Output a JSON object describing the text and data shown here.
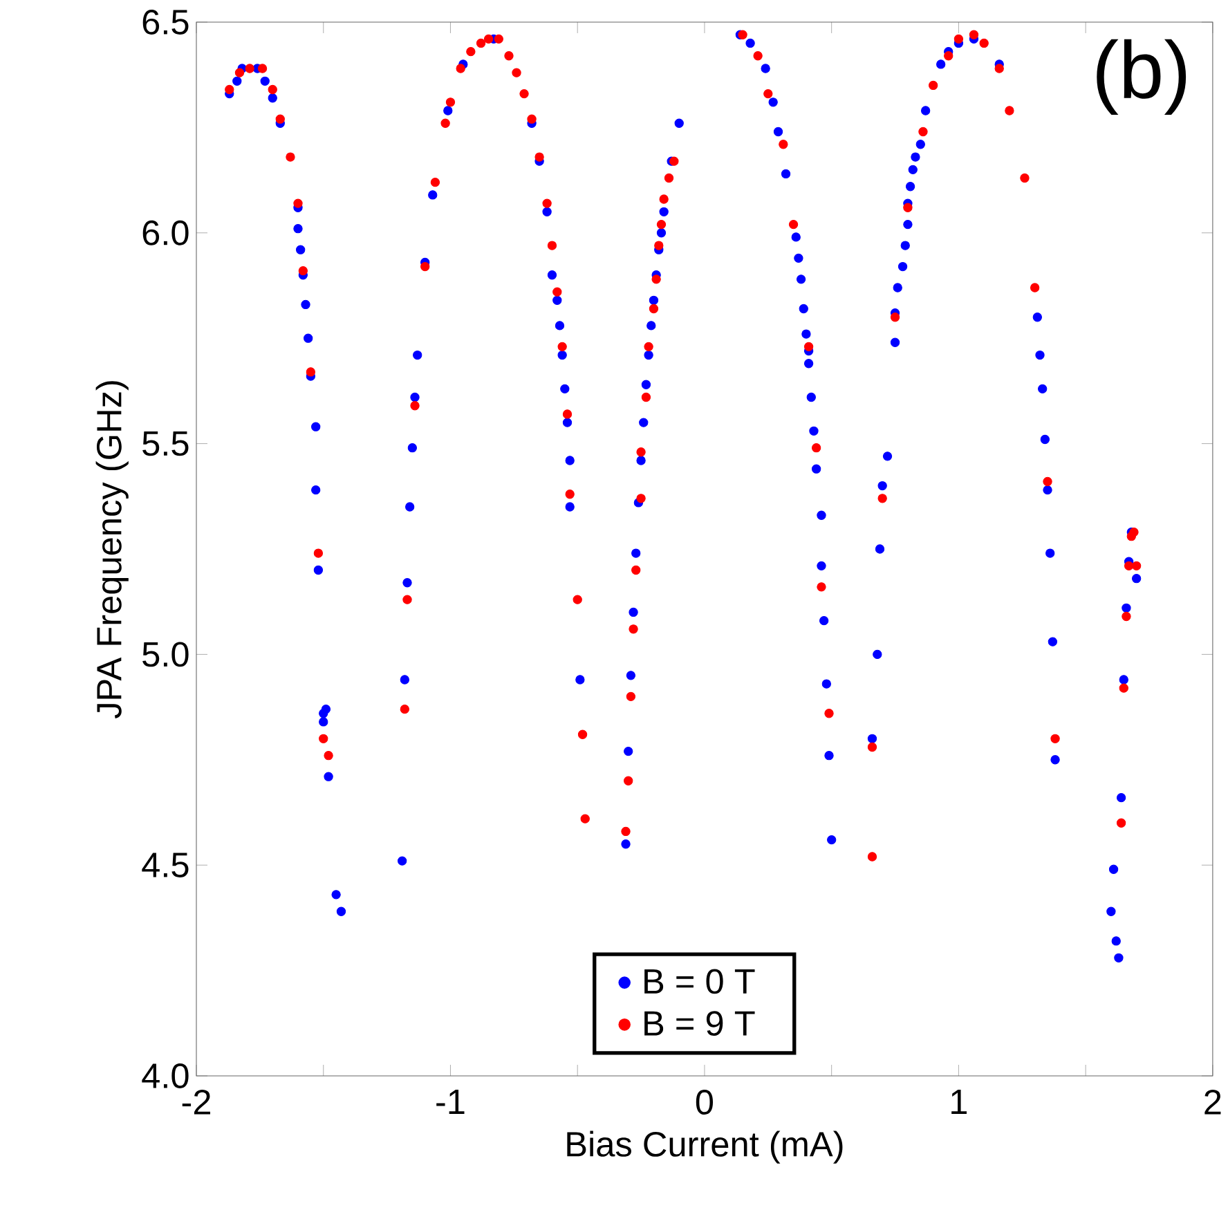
{
  "chart_data": {
    "type": "scatter",
    "xlabel": "Bias Current (mA)",
    "ylabel": "JPA Frequency (GHz)",
    "annotations": [
      "(b)"
    ],
    "xlim": [
      -2,
      2
    ],
    "xticks": [
      {
        "value": -2,
        "label": "-2"
      },
      {
        "value": -1.5,
        "label": null
      },
      {
        "value": -1,
        "label": "-1"
      },
      {
        "value": -0.5,
        "label": null
      },
      0,
      {
        "value": 0.5,
        "label": null
      },
      1,
      {
        "value": 1.5,
        "label": null
      },
      2
    ],
    "ylim": [
      4,
      6.5
    ],
    "yticks": [
      {
        "value": 4,
        "label": "4.0"
      },
      {
        "value": 4.5,
        "label": "4.5"
      },
      {
        "value": 5,
        "label": "5.0"
      },
      {
        "value": 5.5,
        "label": "5.5"
      },
      {
        "value": 6,
        "label": "6.0"
      },
      {
        "value": 6.5,
        "label": "6.5"
      }
    ],
    "marker": "circle",
    "legend": "bottom",
    "grid": false,
    "series": [
      {
        "name": "B = 0 T",
        "color": "#0000ff",
        "x": [
          -1.87,
          -1.84,
          -1.82,
          -1.76,
          -1.73,
          -1.7,
          -1.67,
          -1.6,
          -1.6,
          -1.59,
          -1.58,
          -1.57,
          -1.56,
          -1.55,
          -1.53,
          -1.53,
          -1.52,
          -1.5,
          -1.49,
          -1.5,
          -1.48,
          -1.45,
          -1.43,
          -0.95,
          -1.01,
          -1.07,
          -1.1,
          -1.13,
          -1.14,
          -1.15,
          -1.16,
          -1.17,
          -1.18,
          -1.19,
          -0.88,
          -0.83,
          -0.68,
          -0.65,
          -0.62,
          -0.6,
          -0.58,
          -0.57,
          -0.56,
          -0.55,
          -0.54,
          -0.53,
          -0.53,
          -0.49,
          -0.31,
          -0.3,
          -0.29,
          -0.28,
          -0.27,
          -0.26,
          -0.25,
          -0.24,
          -0.23,
          -0.22,
          -0.21,
          -0.2,
          -0.19,
          -0.18,
          -0.17,
          -0.16,
          -0.13,
          -0.1,
          0.14,
          0.18,
          0.24,
          0.27,
          0.29,
          0.32,
          0.36,
          0.37,
          0.38,
          0.39,
          0.4,
          0.41,
          0.41,
          0.42,
          0.43,
          0.44,
          0.46,
          0.46,
          0.47,
          0.48,
          0.49,
          0.5,
          0.66,
          0.68,
          0.69,
          0.7,
          0.72,
          0.75,
          0.75,
          0.76,
          0.78,
          0.79,
          0.8,
          0.8,
          0.81,
          0.82,
          0.83,
          0.85,
          0.87,
          0.9,
          0.93,
          0.96,
          1.0,
          1.06,
          1.16,
          1.31,
          1.32,
          1.33,
          1.34,
          1.35,
          1.36,
          1.37,
          1.38,
          1.68,
          1.67,
          1.7,
          1.66,
          1.65,
          1.64,
          1.61,
          1.6,
          1.62,
          1.63
        ],
        "values": [
          6.33,
          6.36,
          6.39,
          6.39,
          6.36,
          6.32,
          6.26,
          6.06,
          6.01,
          5.96,
          5.9,
          5.83,
          5.75,
          5.66,
          5.54,
          5.39,
          5.2,
          4.86,
          4.87,
          4.84,
          4.71,
          4.43,
          4.39,
          6.4,
          6.29,
          6.09,
          5.93,
          5.71,
          5.61,
          5.49,
          5.35,
          5.17,
          4.94,
          4.51,
          null,
          6.46,
          6.26,
          6.17,
          6.05,
          5.9,
          5.84,
          5.78,
          5.71,
          5.63,
          5.55,
          5.46,
          5.35,
          4.94,
          4.55,
          4.77,
          4.95,
          5.1,
          5.24,
          5.36,
          5.46,
          5.55,
          5.64,
          5.71,
          5.78,
          5.84,
          5.9,
          5.96,
          6.0,
          6.05,
          6.17,
          6.26,
          6.47,
          6.45,
          6.39,
          6.31,
          6.24,
          6.14,
          5.99,
          5.94,
          5.89,
          5.82,
          5.76,
          5.72,
          5.69,
          5.61,
          5.53,
          5.44,
          5.33,
          5.21,
          5.08,
          4.93,
          4.76,
          4.56,
          4.8,
          5.0,
          5.25,
          5.4,
          5.47,
          5.74,
          5.81,
          5.87,
          5.92,
          5.97,
          6.02,
          6.07,
          6.11,
          6.15,
          6.18,
          6.21,
          6.29,
          null,
          6.4,
          6.43,
          6.45,
          6.46,
          6.4,
          5.8,
          5.71,
          5.63,
          5.51,
          5.39,
          5.24,
          5.03,
          4.75,
          5.29,
          5.22,
          5.18,
          5.11,
          4.94,
          4.66,
          4.49,
          4.39,
          4.32,
          4.28
        ]
      },
      {
        "name": "B = 9 T",
        "color": "#ff0000",
        "x": [
          -1.87,
          -1.83,
          -1.79,
          -1.74,
          -1.7,
          -1.67,
          -1.63,
          -1.6,
          -1.58,
          -1.55,
          -1.52,
          -1.5,
          -1.48,
          -0.92,
          -0.96,
          -1.0,
          -1.02,
          -1.06,
          -1.1,
          -1.14,
          -1.17,
          -1.18,
          -0.88,
          -0.85,
          -0.81,
          -0.77,
          -0.74,
          -0.71,
          -0.68,
          -0.65,
          -0.62,
          -0.6,
          -0.58,
          -0.56,
          -0.54,
          -0.53,
          -0.5,
          -0.48,
          -0.47,
          -0.31,
          -0.3,
          -0.29,
          -0.28,
          -0.27,
          -0.25,
          -0.25,
          -0.23,
          -0.22,
          -0.2,
          -0.19,
          -0.18,
          -0.17,
          -0.16,
          -0.14,
          -0.12,
          0.15,
          0.21,
          0.25,
          0.31,
          0.35,
          0.41,
          0.44,
          0.46,
          0.49,
          0.66,
          0.66,
          0.7,
          0.75,
          0.8,
          0.86,
          0.9,
          0.96,
          1.0,
          1.06,
          1.1,
          1.16,
          1.2,
          1.26,
          1.3,
          1.35,
          1.38,
          1.69,
          1.68,
          1.7,
          1.67,
          1.66,
          1.65,
          1.64
        ],
        "values": [
          6.34,
          6.38,
          6.39,
          6.39,
          6.34,
          6.27,
          6.18,
          6.07,
          5.91,
          5.67,
          5.24,
          4.8,
          4.76,
          6.43,
          6.39,
          6.31,
          6.26,
          6.12,
          5.92,
          5.59,
          5.13,
          4.87,
          6.45,
          6.46,
          6.46,
          6.42,
          6.38,
          6.33,
          6.27,
          6.18,
          6.07,
          5.97,
          5.86,
          5.73,
          5.57,
          5.38,
          5.13,
          4.81,
          4.61,
          4.58,
          4.7,
          4.9,
          5.06,
          5.2,
          5.37,
          5.48,
          5.61,
          5.73,
          5.82,
          5.89,
          5.97,
          6.02,
          6.08,
          6.13,
          6.17,
          6.47,
          6.42,
          6.33,
          6.21,
          6.02,
          5.73,
          5.49,
          5.16,
          4.86,
          4.52,
          4.78,
          5.37,
          5.8,
          6.06,
          6.24,
          6.35,
          6.42,
          6.46,
          6.47,
          6.45,
          6.39,
          6.29,
          6.13,
          5.87,
          5.41,
          4.8,
          5.29,
          5.28,
          5.21,
          5.21,
          5.09,
          4.92,
          4.6
        ]
      }
    ]
  }
}
